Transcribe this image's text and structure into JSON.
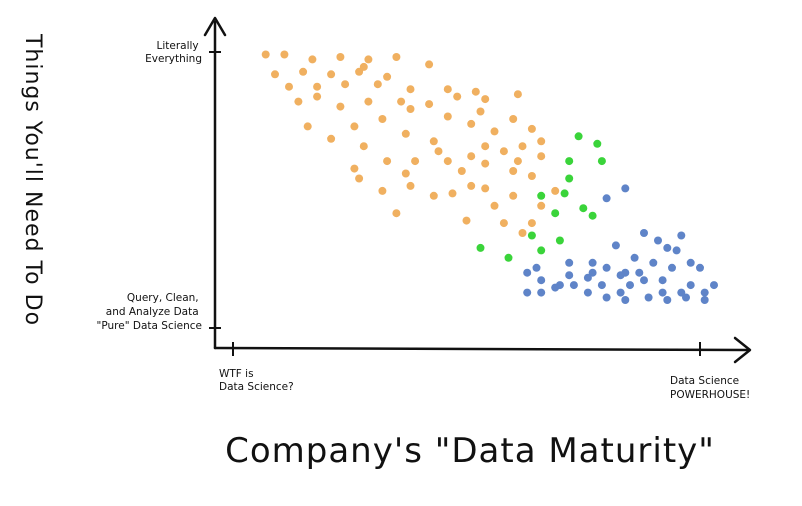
{
  "chart_data": {
    "type": "scatter",
    "title": "",
    "xlabel": "Company's \"Data Maturity\"",
    "ylabel": "Things You'll Need To Do",
    "x_ticks": [
      {
        "value": 0,
        "lines": [
          "WTF is",
          "Data Science?"
        ]
      },
      {
        "value": 100,
        "lines": [
          "Data Science",
          "POWERHOUSE!"
        ]
      }
    ],
    "y_ticks": [
      {
        "value": 0,
        "lines": [
          "Query, Clean,",
          "and Analyze Data",
          "\"Pure\" Data Science"
        ]
      },
      {
        "value": 100,
        "lines": [
          "Literally",
          "Everything"
        ]
      }
    ],
    "xlim": [
      0,
      100
    ],
    "ylim": [
      0,
      100
    ],
    "grid": false,
    "legend": "none",
    "colors": {
      "orange": "#f0b060",
      "green": "#3ad43a",
      "blue": "#5f84c8",
      "axis": "#111111"
    },
    "series": [
      {
        "color": "orange",
        "points": [
          [
            7,
            99
          ],
          [
            11,
            99
          ],
          [
            17,
            97
          ],
          [
            23,
            98
          ],
          [
            29,
            97
          ],
          [
            35,
            98
          ],
          [
            9,
            91
          ],
          [
            15,
            92
          ],
          [
            21,
            91
          ],
          [
            27,
            92
          ],
          [
            33,
            90
          ],
          [
            28,
            94
          ],
          [
            42,
            95
          ],
          [
            12,
            86
          ],
          [
            18,
            86
          ],
          [
            24,
            87
          ],
          [
            31,
            87
          ],
          [
            38,
            85
          ],
          [
            46,
            85
          ],
          [
            52,
            84
          ],
          [
            14,
            80
          ],
          [
            18,
            82
          ],
          [
            29,
            80
          ],
          [
            36,
            80
          ],
          [
            42,
            79
          ],
          [
            48,
            82
          ],
          [
            54,
            81
          ],
          [
            61,
            83
          ],
          [
            23,
            78
          ],
          [
            38,
            77
          ],
          [
            32,
            73
          ],
          [
            46,
            74
          ],
          [
            53,
            76
          ],
          [
            60,
            73
          ],
          [
            16,
            70
          ],
          [
            26,
            70
          ],
          [
            37,
            67
          ],
          [
            51,
            71
          ],
          [
            56,
            68
          ],
          [
            64,
            69
          ],
          [
            21,
            65
          ],
          [
            28,
            62
          ],
          [
            43,
            64
          ],
          [
            54,
            62
          ],
          [
            66,
            64
          ],
          [
            44,
            60
          ],
          [
            51,
            58
          ],
          [
            58,
            60
          ],
          [
            62,
            62
          ],
          [
            66,
            58
          ],
          [
            33,
            56
          ],
          [
            39,
            56
          ],
          [
            46,
            56
          ],
          [
            54,
            55
          ],
          [
            61,
            56
          ],
          [
            26,
            53
          ],
          [
            37,
            51
          ],
          [
            49,
            52
          ],
          [
            60,
            52
          ],
          [
            64,
            50
          ],
          [
            27,
            49
          ],
          [
            38,
            46
          ],
          [
            51,
            46
          ],
          [
            54,
            45
          ],
          [
            32,
            44
          ],
          [
            43,
            42
          ],
          [
            47,
            43
          ],
          [
            60,
            42
          ],
          [
            69,
            44
          ],
          [
            56,
            38
          ],
          [
            66,
            38
          ],
          [
            58,
            31
          ],
          [
            62,
            27
          ],
          [
            35,
            35
          ],
          [
            50,
            32
          ],
          [
            64,
            31
          ]
        ]
      },
      {
        "color": "green",
        "points": [
          [
            74,
            66
          ],
          [
            72,
            56
          ],
          [
            72,
            49
          ],
          [
            78,
            63
          ],
          [
            79,
            56
          ],
          [
            71,
            43
          ],
          [
            66,
            42
          ],
          [
            75,
            37
          ],
          [
            69,
            35
          ],
          [
            77,
            34
          ],
          [
            64,
            26
          ],
          [
            70,
            24
          ],
          [
            53,
            21
          ],
          [
            59,
            17
          ],
          [
            66,
            20
          ]
        ]
      },
      {
        "color": "blue",
        "points": [
          [
            80,
            41
          ],
          [
            84,
            45
          ],
          [
            88,
            27
          ],
          [
            82,
            22
          ],
          [
            91,
            24
          ],
          [
            96,
            26
          ],
          [
            93,
            21
          ],
          [
            95,
            20
          ],
          [
            86,
            17
          ],
          [
            72,
            15
          ],
          [
            77,
            15
          ],
          [
            90,
            15
          ],
          [
            98,
            15
          ],
          [
            80,
            13
          ],
          [
            84,
            11
          ],
          [
            94,
            13
          ],
          [
            100,
            13
          ],
          [
            77,
            11
          ],
          [
            83,
            10
          ],
          [
            87,
            11
          ],
          [
            76,
            9
          ],
          [
            88,
            8
          ],
          [
            92,
            8
          ],
          [
            73,
            6
          ],
          [
            79,
            6
          ],
          [
            85,
            6
          ],
          [
            98,
            6
          ],
          [
            103,
            6
          ],
          [
            76,
            3
          ],
          [
            83,
            3
          ],
          [
            92,
            3
          ],
          [
            96,
            3
          ],
          [
            101,
            3
          ],
          [
            70,
            6
          ],
          [
            72,
            10
          ],
          [
            69,
            5
          ],
          [
            66,
            8
          ],
          [
            63,
            11
          ],
          [
            65,
            13
          ],
          [
            66,
            3
          ],
          [
            63,
            3
          ],
          [
            80,
            1
          ],
          [
            84,
            0
          ],
          [
            89,
            1
          ],
          [
            93,
            0
          ],
          [
            97,
            1
          ],
          [
            101,
            0
          ]
        ]
      }
    ]
  }
}
